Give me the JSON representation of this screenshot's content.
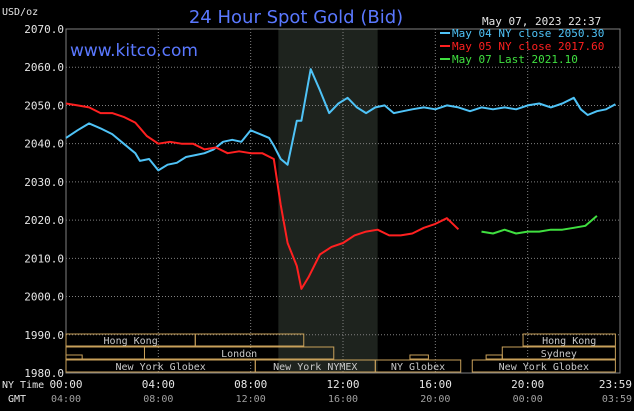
{
  "chart_data": {
    "type": "line",
    "title": "24 Hour Spot Gold (Bid)",
    "watermark": "www.kitco.com",
    "date_label": "May 07, 2023 22:37",
    "ylabel": "USD/oz",
    "ylim": [
      1980,
      2070
    ],
    "yticks": [
      "2070.0",
      "2060.0",
      "2050.0",
      "2040.0",
      "2030.0",
      "2020.0",
      "2010.0",
      "2000.0",
      "1990.0",
      "1980.0"
    ],
    "ytick_values": [
      2070,
      2060,
      2050,
      2040,
      2030,
      2020,
      2010,
      2000,
      1990,
      1980
    ],
    "xlim": [
      0,
      24
    ],
    "xtick_hours": [
      0,
      4,
      8,
      12,
      16,
      20,
      24
    ],
    "xaxis_ny_label": "NY Time",
    "xaxis_gmt_label": "GMT",
    "xticks_ny": [
      "00:00",
      "04:00",
      "08:00",
      "12:00",
      "16:00",
      "20:00",
      "23:59"
    ],
    "xticks_gmt": [
      "04:00",
      "08:00",
      "12:00",
      "16:00",
      "20:00",
      "00:00",
      "03:59"
    ],
    "shaded_session": [
      9.2,
      13.5
    ],
    "legend_placement": "top-right",
    "colors": {
      "background": "#000000",
      "plot_border": "#808080",
      "grid": "#808080",
      "shade": "#1e231e",
      "title": "#5a78ff",
      "watermark": "#5a78ff",
      "text": "#e6e6e6",
      "session": "#c8a05a",
      "session_text": "#c8c8c8"
    },
    "series": [
      {
        "name": "May 04 NY close 2050.30",
        "color": "#4fc3f7",
        "x": [
          0,
          0.5,
          1,
          1.5,
          2,
          2.5,
          3,
          3.2,
          3.6,
          4,
          4.4,
          4.8,
          5.2,
          5.6,
          6,
          6.4,
          6.8,
          7.2,
          7.6,
          8,
          8.4,
          8.8,
          9,
          9.3,
          9.6,
          10,
          10.2,
          10.6,
          11,
          11.4,
          11.8,
          12.2,
          12.6,
          13,
          13.4,
          13.8,
          14.2,
          14.6,
          15,
          15.5,
          16,
          16.5,
          17,
          17.5,
          18,
          18.5,
          19,
          19.5,
          20,
          20.5,
          21,
          21.5,
          22,
          22.3,
          22.6,
          23,
          23.4,
          23.8
        ],
        "values": [
          2041.5,
          2043.5,
          2045.3,
          2044,
          2042.5,
          2040,
          2037.5,
          2035.5,
          2036,
          2033,
          2034.5,
          2035,
          2036.5,
          2037,
          2037.5,
          2038.5,
          2040.5,
          2041,
          2040.5,
          2043.5,
          2042.5,
          2041.5,
          2039.5,
          2036,
          2034.5,
          2046,
          2046,
          2059.5,
          2054,
          2048,
          2050.5,
          2052,
          2049.5,
          2048,
          2049.5,
          2050,
          2048,
          2048.5,
          2049,
          2049.5,
          2049,
          2050,
          2049.5,
          2048.5,
          2049.5,
          2049,
          2049.5,
          2049,
          2050,
          2050.5,
          2049.5,
          2050.5,
          2052,
          2049,
          2047.5,
          2048.5,
          2049,
          2050.3
        ]
      },
      {
        "name": "May 05 NY close 2017.60",
        "color": "#ff2020",
        "x": [
          0,
          0.5,
          1,
          1.5,
          2,
          2.5,
          3,
          3.5,
          4,
          4.5,
          5,
          5.5,
          6,
          6.5,
          7,
          7.5,
          8,
          8.5,
          9,
          9.3,
          9.6,
          10,
          10.2,
          10.5,
          11,
          11.5,
          12,
          12.5,
          13,
          13.5,
          14,
          14.5,
          15,
          15.5,
          16,
          16.5,
          17
        ],
        "values": [
          2050.5,
          2050,
          2049.5,
          2048,
          2048,
          2047,
          2045.5,
          2042,
          2040,
          2040.5,
          2040,
          2040,
          2038.5,
          2039,
          2037.5,
          2038,
          2037.5,
          2037.5,
          2036,
          2024,
          2014,
          2008,
          2002,
          2005,
          2011,
          2013,
          2014,
          2016,
          2017,
          2017.5,
          2016,
          2016,
          2016.5,
          2018,
          2019,
          2020.5,
          2017.6
        ]
      },
      {
        "name": "May 07 Last 2021.10",
        "color": "#40e040",
        "x": [
          18,
          18.5,
          19,
          19.5,
          20,
          20.5,
          21,
          21.5,
          22,
          22.5,
          23
        ],
        "values": [
          2017,
          2016.5,
          2017.5,
          2016.5,
          2017,
          2017,
          2017.5,
          2017.5,
          2018,
          2018.5,
          2021.1
        ]
      }
    ],
    "session_rows": [
      [
        {
          "label": "Hong Kong",
          "start": 0,
          "end": 5.6
        },
        {
          "label": "",
          "start": 5.6,
          "end": 10.3
        },
        {
          "label": "Hong Kong",
          "start": 19.8,
          "end": 23.8
        }
      ],
      [
        {
          "label": "",
          "start": 0,
          "end": 3.4
        },
        {
          "label": "London",
          "start": 3.4,
          "end": 11.6
        },
        {
          "label": "Sydney",
          "start": 18.9,
          "end": 23.8
        }
      ],
      [
        {
          "label": "",
          "start": 0,
          "end": 0.7
        },
        {
          "label": "",
          "start": 14.9,
          "end": 15.7
        },
        {
          "label": "",
          "start": 18.2,
          "end": 18.9
        }
      ],
      [
        {
          "label": "New York Globex",
          "start": 0,
          "end": 8.2
        },
        {
          "label": "New York NYMEX",
          "start": 8.2,
          "end": 13.4
        },
        {
          "label": "NY Globex",
          "start": 13.4,
          "end": 17.1
        },
        {
          "label": "New York Globex",
          "start": 17.6,
          "end": 23.8
        }
      ]
    ]
  }
}
